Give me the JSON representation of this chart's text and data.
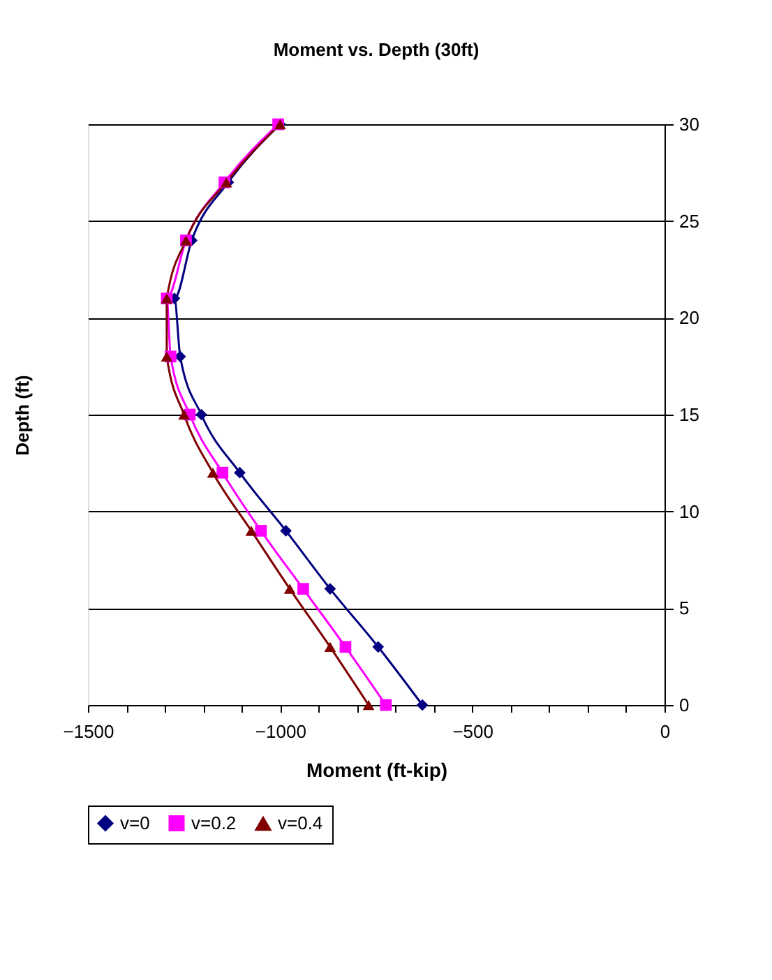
{
  "chart_data": {
    "type": "line",
    "title": "Moment vs. Depth (30ft)",
    "xlabel": "Moment (ft-kip)",
    "ylabel": "Depth (ft)",
    "xlim": [
      -1500,
      0
    ],
    "xticks": [
      -1500,
      {
        "value": -1400,
        "label": null
      },
      {
        "value": -1300,
        "label": null
      },
      {
        "value": -1200,
        "label": null
      },
      {
        "value": -1100,
        "label": null
      },
      -1000,
      {
        "value": -900,
        "label": null
      },
      {
        "value": -800,
        "label": null
      },
      {
        "value": -700,
        "label": null
      },
      {
        "value": -600,
        "label": null
      },
      -500,
      {
        "value": -400,
        "label": null
      },
      {
        "value": -300,
        "label": null
      },
      {
        "value": -200,
        "label": null
      },
      {
        "value": -100,
        "label": null
      },
      0
    ],
    "ylim": [
      0,
      30
    ],
    "yticks": [
      0,
      5,
      10,
      15,
      20,
      25,
      30
    ],
    "grid": "y",
    "legend": "bottom",
    "series": [
      {
        "name": "v=0",
        "color": "#000080",
        "marker": "diamond",
        "x": [
          -630,
          -745,
          -870,
          -985,
          -1105,
          -1205,
          -1260,
          -1275,
          -1230,
          -1135,
          -1000
        ],
        "values": [
          0,
          3,
          6,
          9,
          12,
          15,
          18,
          21,
          24,
          27,
          30
        ]
      },
      {
        "name": "v=0.2",
        "color": "#ff00ff",
        "marker": "square",
        "x": [
          -725,
          -830,
          -940,
          -1050,
          -1150,
          -1235,
          -1285,
          -1295,
          -1245,
          -1145,
          -1005
        ],
        "values": [
          0,
          3,
          6,
          9,
          12,
          15,
          18,
          21,
          24,
          27,
          30
        ]
      },
      {
        "name": "v=0.4",
        "color": "#800000",
        "marker": "triangle",
        "x": [
          -770,
          -870,
          -975,
          -1075,
          -1175,
          -1250,
          -1295,
          -1295,
          -1245,
          -1140,
          -1000
        ],
        "values": [
          0,
          3,
          6,
          9,
          12,
          15,
          18,
          21,
          24,
          27,
          30
        ]
      }
    ]
  }
}
